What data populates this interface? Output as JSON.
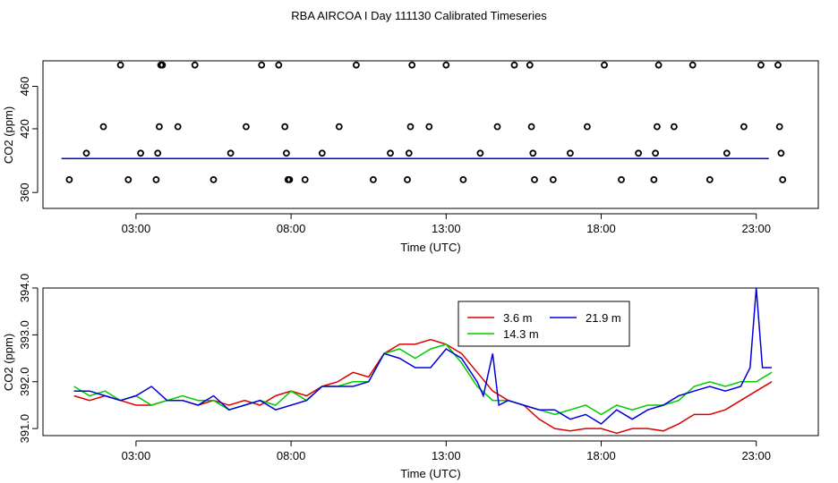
{
  "chart_data": [
    {
      "type": "line",
      "title": "RBA AIRCOA I  Day 111130  Calibrated Timeseries",
      "xlabel": "Time (UTC)",
      "ylabel": "CO2 (ppm)",
      "xlim": [
        0,
        25
      ],
      "ylim": [
        345,
        484
      ],
      "x_ticks": [
        3,
        8,
        13,
        18,
        23
      ],
      "x_tick_labels": [
        "03:00",
        "08:00",
        "13:00",
        "18:00",
        "23:00"
      ],
      "y_ticks": [
        360,
        420,
        460
      ],
      "y_tick_labels": [
        "360",
        "420",
        "460"
      ],
      "series": [
        {
          "color": "#dd0000",
          "x": [
            0.6,
            23.4
          ],
          "values": [
            392,
            392
          ]
        },
        {
          "color": "#00cc00",
          "x": [
            0.6,
            23.4
          ],
          "values": [
            392,
            392
          ]
        },
        {
          "color": "#0000dd",
          "x": [
            0.6,
            23.4
          ],
          "values": [
            392,
            392
          ]
        }
      ],
      "points": {
        "marker": "open circle",
        "x": [
          0.85,
          1.4,
          1.95,
          2.5,
          2.75,
          3.15,
          3.65,
          3.7,
          3.75,
          3.8,
          3.85,
          4.35,
          4.9,
          5.5,
          6.05,
          6.55,
          7.05,
          7.6,
          7.8,
          7.85,
          7.9,
          7.95,
          8.45,
          9,
          9.55,
          10.1,
          10.65,
          11.2,
          11.75,
          11.8,
          11.85,
          11.9,
          12.45,
          13,
          13.55,
          14.1,
          14.65,
          15.2,
          15.7,
          15.75,
          15.8,
          15.85,
          16.45,
          17,
          17.55,
          18.1,
          18.65,
          19.2,
          19.7,
          19.75,
          19.8,
          19.85,
          20.35,
          20.95,
          21.5,
          22.05,
          22.6,
          23.15,
          23.7,
          23.75,
          23.8,
          23.85
        ],
        "values": [
          372,
          397,
          422,
          480,
          372,
          397,
          372,
          397,
          422,
          480,
          480,
          422,
          480,
          372,
          397,
          422,
          480,
          480,
          422,
          397,
          372,
          372,
          372,
          397,
          422,
          480,
          372,
          397,
          372,
          397,
          422,
          480,
          422,
          480,
          372,
          397,
          422,
          480,
          480,
          422,
          397,
          372,
          372,
          397,
          422,
          480,
          372,
          397,
          372,
          397,
          422,
          480,
          422,
          480,
          372,
          397,
          422,
          480,
          480,
          422,
          397,
          372
        ]
      }
    },
    {
      "type": "line",
      "xlabel": "Time (UTC)",
      "ylabel": "CO2 (ppm)",
      "xlim": [
        0,
        25
      ],
      "ylim": [
        390.85,
        394.0
      ],
      "x_ticks": [
        3,
        8,
        13,
        18,
        23
      ],
      "x_tick_labels": [
        "03:00",
        "08:00",
        "13:00",
        "18:00",
        "23:00"
      ],
      "y_ticks": [
        391.0,
        392.0,
        393.0,
        394.0
      ],
      "y_tick_labels": [
        "391.0",
        "392.0",
        "393.0",
        "394.0"
      ],
      "legend": {
        "position": "top-center",
        "ncol": 2
      },
      "series": [
        {
          "name": "3.6 m",
          "color": "#dd0000",
          "x": [
            1,
            1.5,
            2,
            2.5,
            3,
            3.5,
            4,
            4.5,
            5,
            5.5,
            6,
            6.5,
            7,
            7.5,
            8,
            8.5,
            9,
            9.5,
            10,
            10.5,
            11,
            11.5,
            12,
            12.5,
            13,
            13.5,
            14,
            14.5,
            15,
            15.5,
            16,
            16.5,
            17,
            17.5,
            18,
            18.5,
            19,
            19.5,
            20,
            20.5,
            21,
            21.5,
            22,
            22.5,
            23,
            23.5
          ],
          "values": [
            391.7,
            391.6,
            391.7,
            391.6,
            391.5,
            391.5,
            391.6,
            391.6,
            391.5,
            391.6,
            391.5,
            391.6,
            391.5,
            391.7,
            391.8,
            391.7,
            391.9,
            392.0,
            392.2,
            392.1,
            392.6,
            392.8,
            392.8,
            392.9,
            392.8,
            392.6,
            392.2,
            391.8,
            391.6,
            391.5,
            391.2,
            391.0,
            390.95,
            391.0,
            391.0,
            390.9,
            391.0,
            391.0,
            390.95,
            391.1,
            391.3,
            391.3,
            391.4,
            391.6,
            391.8,
            392.0
          ]
        },
        {
          "name": "14.3 m",
          "color": "#00cc00",
          "x": [
            1,
            1.5,
            2,
            2.5,
            3,
            3.5,
            4,
            4.5,
            5,
            5.5,
            6,
            6.5,
            7,
            7.5,
            8,
            8.5,
            9,
            9.5,
            10,
            10.5,
            11,
            11.5,
            12,
            12.5,
            13,
            13.5,
            14,
            14.5,
            15,
            15.5,
            16,
            16.5,
            17,
            17.5,
            18,
            18.5,
            19,
            19.5,
            20,
            20.5,
            21,
            21.5,
            22,
            22.5,
            23,
            23.5
          ],
          "values": [
            391.9,
            391.7,
            391.8,
            391.6,
            391.7,
            391.5,
            391.6,
            391.7,
            391.6,
            391.6,
            391.4,
            391.5,
            391.6,
            391.5,
            391.8,
            391.6,
            391.9,
            391.9,
            392.0,
            392.0,
            392.6,
            392.7,
            392.5,
            392.7,
            392.8,
            392.4,
            391.9,
            391.6,
            391.6,
            391.5,
            391.4,
            391.3,
            391.4,
            391.5,
            391.3,
            391.5,
            391.4,
            391.5,
            391.5,
            391.6,
            391.9,
            392.0,
            391.9,
            392.0,
            392.0,
            392.2
          ]
        },
        {
          "name": "21.9 m",
          "color": "#0000dd",
          "x": [
            1,
            1.5,
            2,
            2.5,
            3,
            3.5,
            4,
            4.5,
            5,
            5.5,
            6,
            6.5,
            7,
            7.5,
            8,
            8.5,
            9,
            9.5,
            10,
            10.5,
            11,
            11.5,
            12,
            12.5,
            13,
            13.5,
            14,
            14.2,
            14.5,
            14.7,
            15,
            15.5,
            16,
            16.5,
            17,
            17.5,
            18,
            18.5,
            19,
            19.5,
            20,
            20.5,
            21,
            21.5,
            22,
            22.5,
            22.8,
            23,
            23.2,
            23.5
          ],
          "values": [
            391.8,
            391.8,
            391.7,
            391.6,
            391.7,
            391.9,
            391.6,
            391.6,
            391.5,
            391.7,
            391.4,
            391.5,
            391.6,
            391.4,
            391.5,
            391.6,
            391.9,
            391.9,
            391.9,
            392.0,
            392.6,
            392.5,
            392.3,
            392.3,
            392.7,
            392.5,
            392.0,
            391.7,
            392.6,
            391.5,
            391.6,
            391.5,
            391.4,
            391.4,
            391.2,
            391.3,
            391.1,
            391.4,
            391.2,
            391.4,
            391.5,
            391.7,
            391.8,
            391.9,
            391.8,
            391.9,
            392.3,
            394.0,
            392.3,
            392.3
          ]
        }
      ]
    }
  ]
}
